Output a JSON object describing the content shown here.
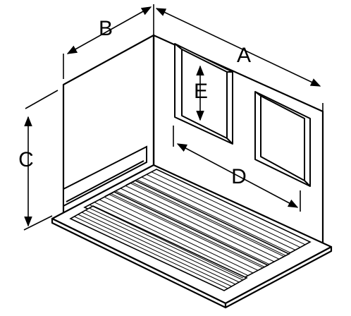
{
  "diagram": {
    "labels": {
      "a": "A",
      "b": "B",
      "c": "C",
      "d": "D",
      "e": "E"
    },
    "colors": {
      "stroke": "#000000",
      "fill": "#ffffff",
      "shade": "#e6e6e6"
    }
  }
}
